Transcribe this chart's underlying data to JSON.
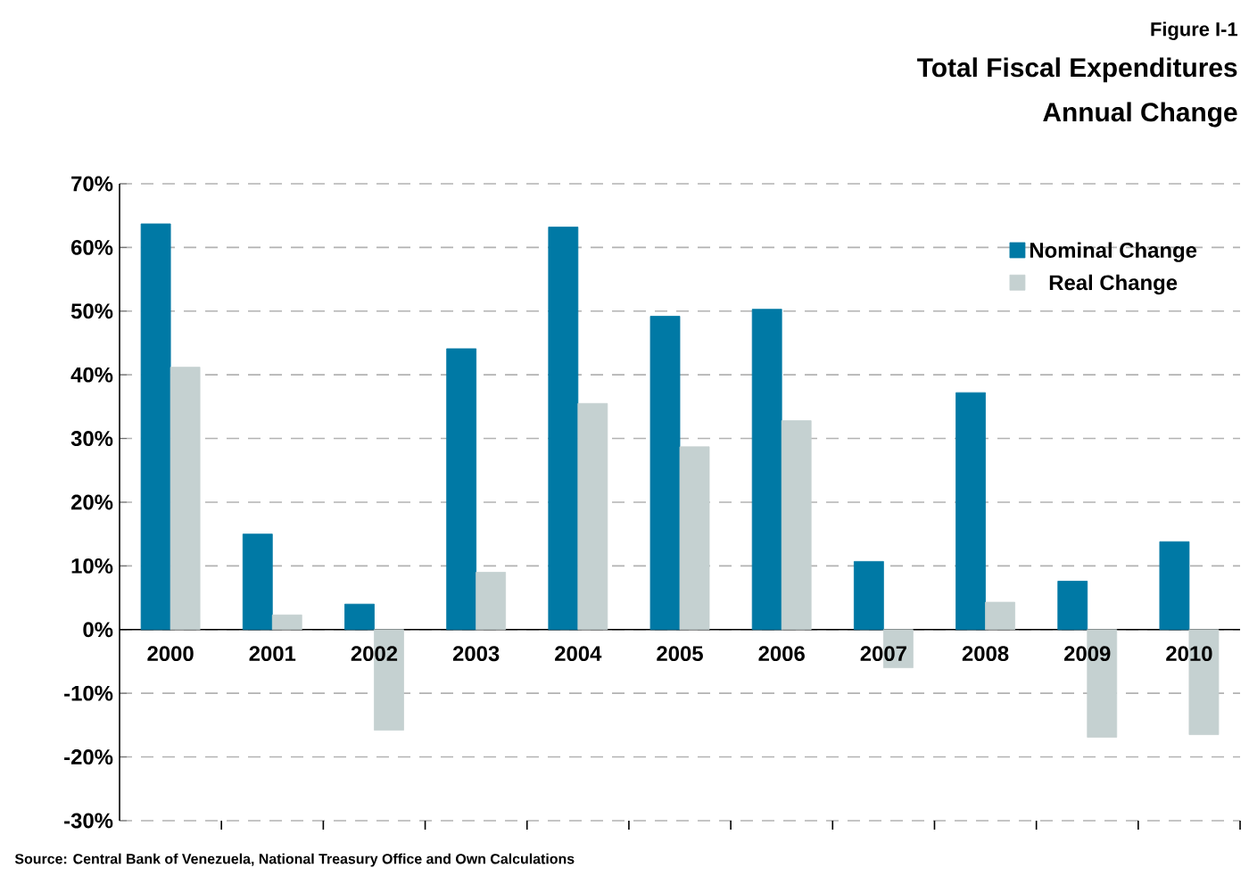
{
  "chart_data": {
    "type": "bar",
    "title": "Total Fiscal Expenditures",
    "subtitle": "Annual Change",
    "annotations": [
      "Figure I-1",
      "Source: Central Bank of Venezuela, National Treasury Office and Own Calculations"
    ],
    "categories": [
      "2000",
      "2001",
      "2002",
      "2003",
      "2004",
      "2005",
      "2006",
      "2007",
      "2008",
      "2009",
      "2010"
    ],
    "series": [
      {
        "name": "Nominal Change",
        "color": "#0079a5",
        "values": [
          63.7,
          15.0,
          4.0,
          44.1,
          63.2,
          49.2,
          50.3,
          10.7,
          37.2,
          7.6,
          13.8
        ]
      },
      {
        "name": "Real Change",
        "color": "#c5d1d1",
        "values": [
          41.2,
          2.3,
          -15.8,
          9.0,
          35.5,
          28.7,
          32.8,
          -6.0,
          4.3,
          -16.9,
          -16.5
        ]
      }
    ],
    "ylim": [
      -30,
      70
    ],
    "yticks": [
      {
        "value": -30,
        "label": "-30%"
      },
      {
        "value": -20,
        "label": "-20%"
      },
      {
        "value": -10,
        "label": "-10%"
      },
      {
        "value": 0,
        "label": "0%"
      },
      {
        "value": 10,
        "label": "10%"
      },
      {
        "value": 20,
        "label": "20%"
      },
      {
        "value": 30,
        "label": "30%"
      },
      {
        "value": 40,
        "label": "40%"
      },
      {
        "value": 50,
        "label": "50%"
      },
      {
        "value": 60,
        "label": "60%"
      },
      {
        "value": 70,
        "label": "70%"
      }
    ],
    "grid": "y",
    "legend": "top right"
  }
}
